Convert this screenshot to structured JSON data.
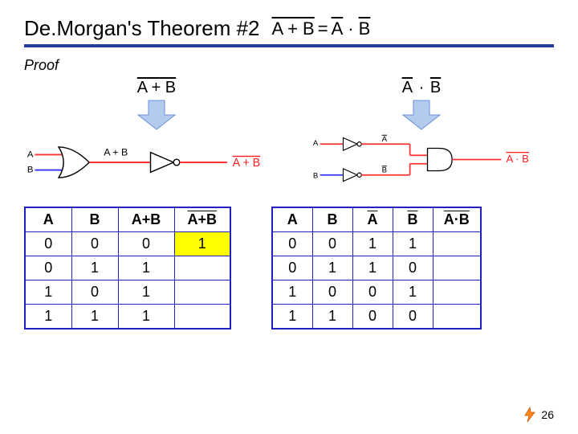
{
  "title": "De.Morgan's Theorem #2",
  "formula_left": "A + B",
  "formula_right_a": "A",
  "formula_right_b": "B",
  "proof_label": "Proof",
  "expr_left": "A + B",
  "expr_right_a": "A",
  "expr_right_b": "B",
  "colors": {
    "bar": "#22409a",
    "table_border": "#2020c0",
    "highlight": "#ffff00",
    "arrow_fill": "#b3ccee",
    "arrow_stroke": "#6a8fd8",
    "wire_a": "#ff3030",
    "wire_b": "#3030ff",
    "gate_stroke": "#000000",
    "out_label": "#ff2020"
  },
  "circuit_left": {
    "in_a": "A",
    "in_b": "B",
    "mid_label": "A + B",
    "out_label": "A + B"
  },
  "circuit_right": {
    "in_a": "A",
    "in_b": "B",
    "mid_a": "A",
    "mid_b": "B",
    "out_label": "A · B"
  },
  "table1": {
    "headers": [
      "A",
      "B",
      "A+B",
      "A+B"
    ],
    "header_overline": [
      false,
      false,
      false,
      true
    ],
    "rows": [
      [
        "0",
        "0",
        "0",
        "1"
      ],
      [
        "0",
        "1",
        "1",
        ""
      ],
      [
        "1",
        "0",
        "1",
        ""
      ],
      [
        "1",
        "1",
        "1",
        ""
      ]
    ],
    "highlight_cell": [
      0,
      3
    ]
  },
  "table2": {
    "headers": [
      "A",
      "B",
      "A",
      "B",
      "A·B"
    ],
    "header_overline": [
      false,
      false,
      true,
      true,
      true
    ],
    "rows": [
      [
        "0",
        "0",
        "1",
        "1",
        ""
      ],
      [
        "0",
        "1",
        "1",
        "0",
        ""
      ],
      [
        "1",
        "0",
        "0",
        "1",
        ""
      ],
      [
        "1",
        "1",
        "0",
        "0",
        ""
      ]
    ]
  },
  "page_number": "26"
}
